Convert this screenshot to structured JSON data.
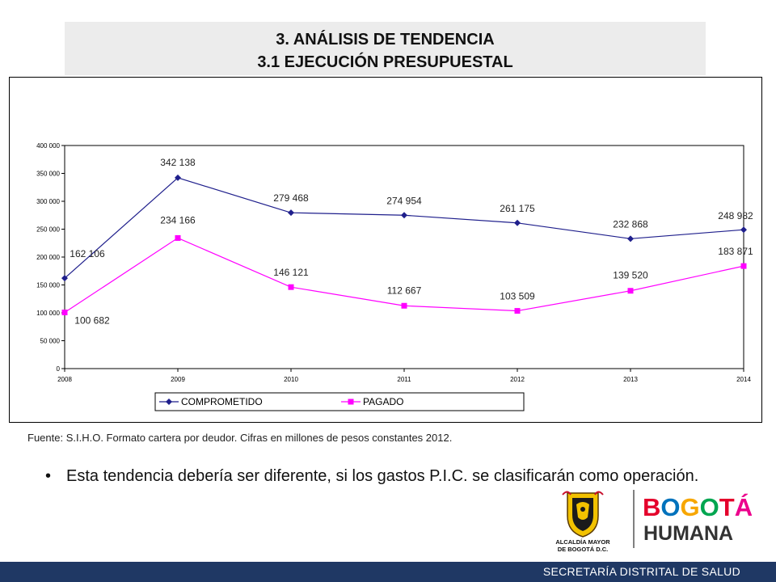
{
  "title": {
    "line1": "3. ANÁLISIS DE TENDENCIA",
    "line2": "3.1 EJECUCIÓN PRESUPUESTAL"
  },
  "chart_data": {
    "type": "line",
    "x": [
      "2008",
      "2009",
      "2010",
      "2011",
      "2012",
      "2013",
      "2014"
    ],
    "ylim": [
      0,
      400000
    ],
    "yticks": [
      0,
      50000,
      100000,
      150000,
      200000,
      250000,
      300000,
      350000,
      400000
    ],
    "ytick_labels": [
      "0",
      "50 000",
      "100 000",
      "150 000",
      "200 000",
      "250 000",
      "300 000",
      "350 000",
      "400 000"
    ],
    "grid": false,
    "legend_position": "bottom",
    "series": [
      {
        "name": "COMPROMETIDO",
        "color": "#1f1f8c",
        "marker": "diamond",
        "values": [
          162106,
          342138,
          279468,
          274954,
          261175,
          232868,
          248982
        ],
        "labels": [
          "162 106",
          "342 138",
          "279 468",
          "274 954",
          "261 175",
          "232 868",
          "248 982"
        ]
      },
      {
        "name": "PAGADO",
        "color": "#ff00ff",
        "marker": "square",
        "values": [
          100682,
          234166,
          146121,
          112667,
          103509,
          139520,
          183871
        ],
        "labels": [
          "100 682",
          "234 166",
          "146 121",
          "112 667",
          "103 509",
          "139 520",
          "183 871"
        ]
      }
    ]
  },
  "source_note": "Fuente: S.I.H.O.  Formato cartera por deudor. Cifras en millones de pesos constantes 2012.",
  "bullet": {
    "marker": "•",
    "text": "Esta tendencia debería ser diferente, si los gastos P.I.C. se clasificarán como operación."
  },
  "logos": {
    "alcaldia_text_line1": "ALCALDÍA MAYOR",
    "alcaldia_text_line2": "DE BOGOTÁ D.C.",
    "brand_line1": "BOGOTÁ",
    "brand_line2": "HUMANA",
    "brand_colors": [
      "#e4002b",
      "#0072bc",
      "#f7a600",
      "#00a650",
      "#ec008c"
    ]
  },
  "footer": {
    "label": "SECRETARÍA DISTRITAL DE SALUD",
    "color": "#1f3864"
  }
}
